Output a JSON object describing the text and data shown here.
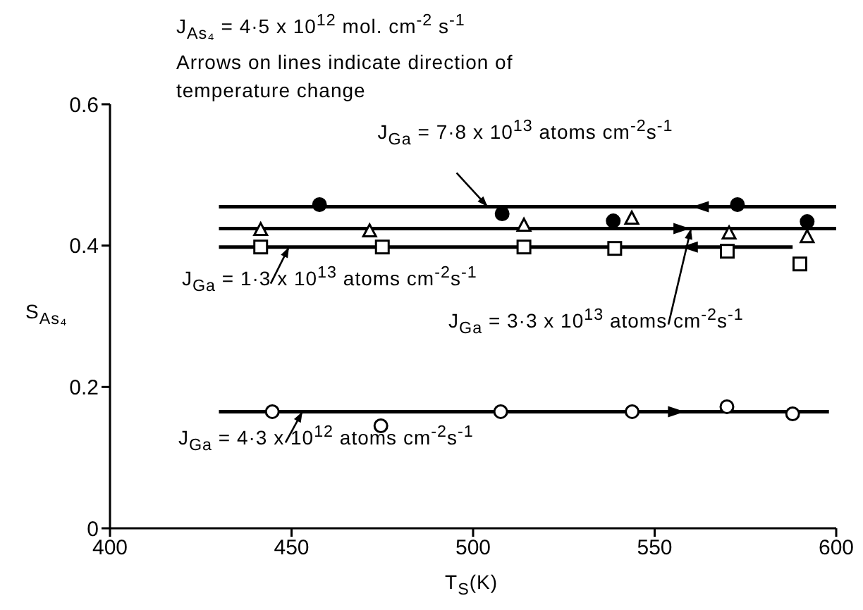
{
  "chart_data": {
    "type": "scatter",
    "title": "J$_{As₄}$ = 4·5 x 10$^{12}$ mol. cm$^{-2}$ s$^{-1}$",
    "subtitle": "Arrows on lines indicate direction of temperature change",
    "xlabel": "T$_{S}$(K)",
    "ylabel": "S$_{As₄}$",
    "xlim": [
      400,
      600
    ],
    "xticks": [
      400,
      450,
      500,
      550,
      600
    ],
    "ylim": [
      0,
      0.6
    ],
    "yticks": [
      0,
      0.2,
      0.4,
      0.6
    ],
    "grid": false,
    "legend": false,
    "series": [
      {
        "type": "scatter",
        "marker": "circle",
        "color": "#000000",
        "x": [
          457.7,
          508,
          538.6,
          572.8,
          592
        ],
        "values": [
          0.458,
          0.445,
          0.435,
          0.458,
          0.434
        ]
      },
      {
        "type": "scatter",
        "marker": "triangle",
        "color": "#000000",
        "x": [
          441.5,
          471.5,
          514,
          543.7,
          570.5,
          592
        ],
        "values": [
          0.422,
          0.42,
          0.428,
          0.438,
          0.417,
          0.412
        ]
      },
      {
        "type": "scatter",
        "marker": "square",
        "color": "#000000",
        "x": [
          441.5,
          475,
          514,
          539,
          570,
          590
        ],
        "values": [
          0.398,
          0.398,
          0.398,
          0.396,
          0.392,
          0.374
        ]
      },
      {
        "type": "scatter",
        "marker": "circle",
        "color": "#000000",
        "x": [
          444.7,
          474.6,
          507.6,
          543.8,
          569.9,
          588
        ],
        "values": [
          0.165,
          0.145,
          0.165,
          0.165,
          0.172,
          0.162
        ]
      },
      {
        "type": "line",
        "marker": "none",
        "color": "#000000",
        "x": [
          430,
          600
        ],
        "values": [
          0.455,
          0.455
        ]
      },
      {
        "type": "line",
        "marker": "none",
        "color": "#000000",
        "x": [
          430,
          600
        ],
        "values": [
          0.424,
          0.424
        ]
      },
      {
        "type": "line",
        "marker": "none",
        "color": "#000000",
        "x": [
          430,
          588
        ],
        "values": [
          0.398,
          0.398
        ]
      },
      {
        "type": "line",
        "marker": "none",
        "color": "#000000",
        "x": [
          430,
          598
        ],
        "values": [
          0.165,
          0.165
        ]
      }
    ],
    "annotations": [
      {
        "text": "J$_{Ga}$ = 7·8 x 10$^{13}$ atoms cm$^{-2}$s$^{-1}$",
        "x": 504,
        "y": 0.455
      },
      {
        "text": "J$_{Ga}$ = 1·3 x 10$^{13}$ atoms cm$^{-2}$s$^{-1}$",
        "x": 449.3,
        "y": 0.398
      },
      {
        "text": "J$_{Ga}$ = 3·3 x 10$^{13}$ atoms cm$^{-2}$s$^{-1}$",
        "x": 560,
        "y": 0.424
      },
      {
        "text": "J$_{Ga}$ = 4·3 x 10$^{12}$ atoms cm$^{-2}$s$^{-1}$",
        "x": 453,
        "y": 0.165
      }
    ]
  }
}
